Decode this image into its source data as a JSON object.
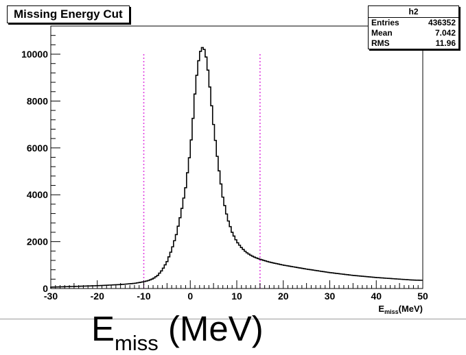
{
  "chart_data": {
    "type": "histogram",
    "title": "Missing Energy Cut",
    "stats": {
      "name": "h2",
      "rows": [
        {
          "label": "Entries",
          "value": "436352"
        },
        {
          "label": "Mean",
          "value": "7.042"
        },
        {
          "label": "RMS",
          "value": "11.96"
        }
      ]
    },
    "xlim": [
      -30,
      50
    ],
    "ylim": [
      0,
      11200
    ],
    "xticks": [
      -30,
      -20,
      -10,
      0,
      10,
      20,
      30,
      40,
      50
    ],
    "yticks": [
      0,
      2000,
      4000,
      6000,
      8000,
      10000
    ],
    "axis_xlabel": {
      "main": "E",
      "sub": "miss",
      "tail": "(MeV)"
    },
    "big_xlabel": {
      "main": "E",
      "sub": "miss",
      "tail": " (MeV)"
    },
    "cut_lines": [
      -10,
      15
    ],
    "cut_line_color": "#e040e0",
    "line_color": "#000000",
    "points": [
      [
        -30,
        60
      ],
      [
        -25,
        90
      ],
      [
        -20,
        120
      ],
      [
        -15,
        170
      ],
      [
        -12,
        220
      ],
      [
        -10,
        290
      ],
      [
        -9,
        340
      ],
      [
        -8,
        420
      ],
      [
        -7,
        560
      ],
      [
        -6,
        800
      ],
      [
        -5,
        1150
      ],
      [
        -4,
        1650
      ],
      [
        -3,
        2300
      ],
      [
        -2,
        3200
      ],
      [
        -1,
        4300
      ],
      [
        0,
        5900
      ],
      [
        0.5,
        7000
      ],
      [
        1,
        8300
      ],
      [
        1.5,
        9300
      ],
      [
        2,
        10000
      ],
      [
        2.5,
        10300
      ],
      [
        3,
        10200
      ],
      [
        3.5,
        9800
      ],
      [
        4,
        9000
      ],
      [
        4.5,
        8000
      ],
      [
        5,
        7000
      ],
      [
        6,
        5300
      ],
      [
        7,
        3900
      ],
      [
        8,
        3000
      ],
      [
        9,
        2400
      ],
      [
        10,
        2000
      ],
      [
        11,
        1750
      ],
      [
        12,
        1550
      ],
      [
        13,
        1420
      ],
      [
        14,
        1320
      ],
      [
        15,
        1250
      ],
      [
        17,
        1130
      ],
      [
        20,
        1000
      ],
      [
        25,
        830
      ],
      [
        30,
        680
      ],
      [
        35,
        560
      ],
      [
        40,
        470
      ],
      [
        45,
        400
      ],
      [
        48,
        360
      ],
      [
        50,
        350
      ]
    ]
  }
}
